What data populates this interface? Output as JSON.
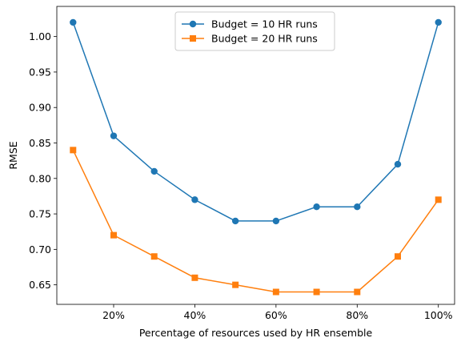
{
  "chart_data": {
    "type": "line",
    "title": "",
    "xlabel": "Percentage of resources used by HR ensemble",
    "ylabel": "RMSE",
    "x": [
      10,
      20,
      30,
      40,
      50,
      60,
      70,
      80,
      90,
      100
    ],
    "xlim": [
      6,
      104
    ],
    "ylim": [
      0.6225,
      1.0425
    ],
    "xticks": [
      20,
      40,
      60,
      80,
      100
    ],
    "xtick_labels": [
      "20%",
      "40%",
      "60%",
      "80%",
      "100%"
    ],
    "yticks": [
      0.65,
      0.7,
      0.75,
      0.8,
      0.85,
      0.9,
      0.95,
      1.0
    ],
    "ytick_labels": [
      "0.65",
      "0.70",
      "0.75",
      "0.80",
      "0.85",
      "0.90",
      "0.95",
      "1.00"
    ],
    "grid": false,
    "legend_position": "top-center",
    "series": [
      {
        "name": "Budget = 10 HR runs",
        "color": "#1f77b4",
        "marker": "circle",
        "values": [
          1.02,
          0.86,
          0.81,
          0.77,
          0.74,
          0.74,
          0.76,
          0.76,
          0.82,
          1.02
        ]
      },
      {
        "name": "Budget = 20 HR runs",
        "color": "#ff7f0e",
        "marker": "square",
        "values": [
          0.84,
          0.72,
          0.69,
          0.66,
          0.65,
          0.64,
          0.64,
          0.64,
          0.69,
          0.77
        ]
      }
    ]
  }
}
